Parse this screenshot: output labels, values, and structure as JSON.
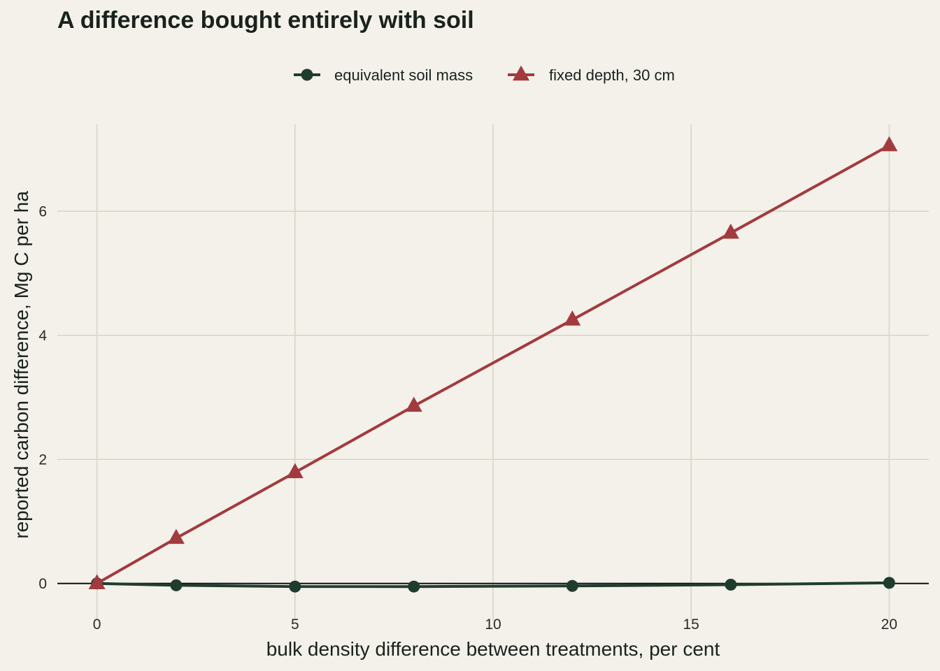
{
  "chart_data": {
    "type": "line",
    "title": "A difference bought entirely with soil",
    "xlabel": "bulk density difference between treatments, per cent",
    "ylabel": "reported carbon difference, Mg C per ha",
    "xlim": [
      -1,
      21
    ],
    "ylim": [
      -0.6,
      7.4
    ],
    "xticks": [
      0,
      5,
      10,
      15,
      20
    ],
    "yticks": [
      0,
      2,
      4,
      6
    ],
    "grid": true,
    "zero_line": true,
    "legend_position": "top-center",
    "series": [
      {
        "name": "equivalent soil mass",
        "color": "#1f3d2e",
        "marker": "circle",
        "x": [
          0,
          2,
          5,
          8,
          12,
          16,
          20
        ],
        "y": [
          0.0,
          -0.03,
          -0.05,
          -0.05,
          -0.04,
          -0.02,
          0.01
        ]
      },
      {
        "name": "fixed depth, 30 cm",
        "color": "#a23b3e",
        "marker": "triangle",
        "x": [
          0,
          2,
          5,
          8,
          12,
          16,
          20
        ],
        "y": [
          0.0,
          0.73,
          1.79,
          2.86,
          4.25,
          5.65,
          7.06
        ]
      }
    ]
  }
}
